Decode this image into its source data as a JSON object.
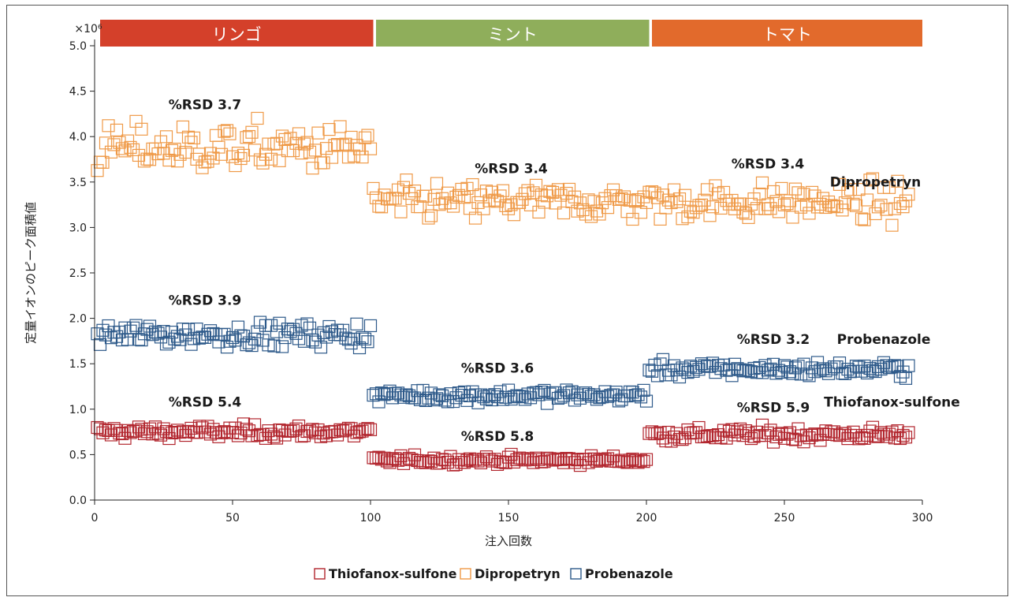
{
  "chart_data": {
    "type": "scatter",
    "title": "",
    "xlabel": "注入回数",
    "ylabel": "定量イオンのピーク面積値",
    "y_multiplier": "×10⁶",
    "xlim": [
      0,
      300
    ],
    "ylim": [
      0,
      5.0
    ],
    "x_ticks": [
      "0",
      "50",
      "100",
      "150",
      "200",
      "250",
      "300"
    ],
    "y_ticks": [
      "0.0",
      "0.5",
      "1.0",
      "1.5",
      "2.0",
      "2.5",
      "3.0",
      "3.5",
      "4.0",
      "4.5",
      "5.0"
    ],
    "grid": false,
    "legend_position": "bottom",
    "matrix_bands": [
      {
        "label": "リンゴ",
        "x_start": 2,
        "x_end": 101,
        "color": "#d4402a"
      },
      {
        "label": "ミント",
        "x_start": 102,
        "x_end": 201,
        "color": "#8fae5b"
      },
      {
        "label": "トマト",
        "x_start": 202,
        "x_end": 300,
        "color": "#e26a2c"
      }
    ],
    "series": [
      {
        "name": "Thiofanox-sulfone",
        "color": "#b2262e",
        "segments": [
          {
            "x_start": 1,
            "x_end": 100,
            "mean": 0.75,
            "rsd": 5.4
          },
          {
            "x_start": 101,
            "x_end": 200,
            "mean": 0.44,
            "rsd": 5.8
          },
          {
            "x_start": 201,
            "x_end": 295,
            "mean": 0.72,
            "rsd": 5.9
          }
        ]
      },
      {
        "name": "Dipropetryn",
        "color": "#ef9a48",
        "segments": [
          {
            "x_start": 1,
            "x_end": 100,
            "mean": 3.87,
            "rsd": 3.7
          },
          {
            "x_start": 101,
            "x_end": 200,
            "mean": 3.28,
            "rsd": 3.4
          },
          {
            "x_start": 201,
            "x_end": 295,
            "mean": 3.28,
            "rsd": 3.4
          }
        ]
      },
      {
        "name": "Probenazole",
        "color": "#2e5a8a",
        "segments": [
          {
            "x_start": 1,
            "x_end": 100,
            "mean": 1.82,
            "rsd": 3.9
          },
          {
            "x_start": 101,
            "x_end": 200,
            "mean": 1.15,
            "rsd": 3.6
          },
          {
            "x_start": 201,
            "x_end": 295,
            "mean": 1.44,
            "rsd": 3.2
          }
        ]
      }
    ],
    "annotations": [
      {
        "text": "%RSD 3.7",
        "x": 40,
        "y": 4.3
      },
      {
        "text": "%RSD 3.4",
        "x": 151,
        "y": 3.6
      },
      {
        "text": "%RSD 3.4",
        "x": 244,
        "y": 3.65
      },
      {
        "text": "Dipropetryn",
        "x": 283,
        "y": 3.45
      },
      {
        "text": "%RSD 3.9",
        "x": 40,
        "y": 2.15
      },
      {
        "text": "%RSD 3.6",
        "x": 146,
        "y": 1.4
      },
      {
        "text": "%RSD 3.2",
        "x": 246,
        "y": 1.72
      },
      {
        "text": "Probenazole",
        "x": 286,
        "y": 1.72
      },
      {
        "text": "%RSD 5.4",
        "x": 40,
        "y": 1.03
      },
      {
        "text": "%RSD 5.8",
        "x": 146,
        "y": 0.65
      },
      {
        "text": "%RSD 5.9",
        "x": 246,
        "y": 0.97
      },
      {
        "text": "Thiofanox-sulfone",
        "x": 289,
        "y": 1.03
      }
    ]
  }
}
